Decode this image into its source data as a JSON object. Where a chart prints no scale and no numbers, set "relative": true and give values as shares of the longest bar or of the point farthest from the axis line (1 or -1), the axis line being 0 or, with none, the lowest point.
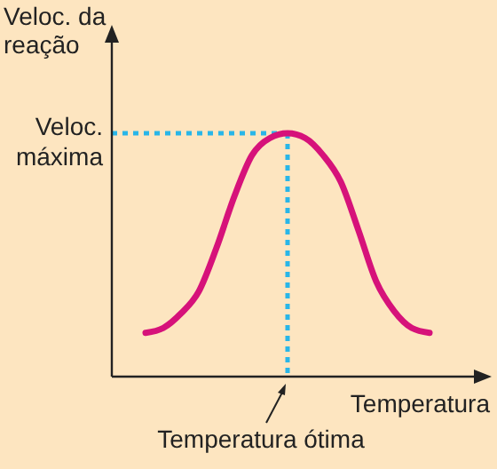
{
  "chart_data": {
    "type": "line",
    "relative": true,
    "ylabel": "Veloc. da reação",
    "xlabel": "Temperatura",
    "categories": [
      null,
      null,
      null,
      null,
      null,
      null,
      null,
      null,
      null,
      null,
      null,
      null,
      null,
      null,
      null,
      null,
      null
    ],
    "series": [
      {
        "color": "#d6127a",
        "values": [
          0.18,
          0.2,
          0.26,
          0.35,
          0.53,
          0.74,
          0.91,
          0.98,
          1,
          0.98,
          0.91,
          0.8,
          0.6,
          0.39,
          0.27,
          0.2,
          0.18
        ]
      }
    ],
    "ref_lines": [
      {
        "axis": "y",
        "value": 1,
        "label": "Veloc. máxima",
        "color": "#29b6e8",
        "line_style": "dotted"
      }
    ],
    "annotations": [
      "Temperatura ótima"
    ],
    "line_style": "solid"
  }
}
